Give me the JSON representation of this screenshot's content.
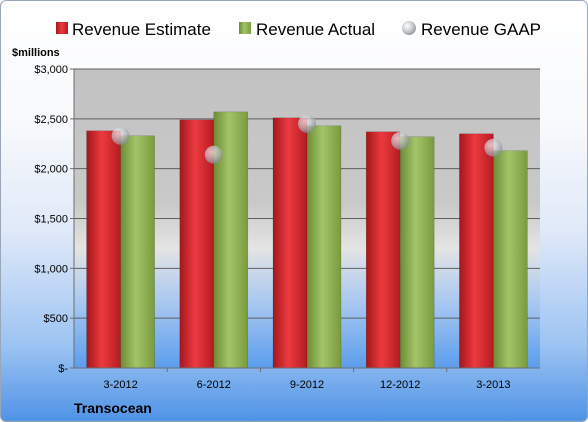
{
  "chart_data": {
    "type": "bar",
    "unit_label": "$millions",
    "company": "Transocean",
    "categories": [
      "3-2012",
      "6-2012",
      "9-2012",
      "12-2012",
      "3-2013"
    ],
    "series": [
      {
        "name": "Revenue Estimate",
        "kind": "bar",
        "color": "#d8232a",
        "values": [
          2380,
          2490,
          2510,
          2370,
          2350
        ]
      },
      {
        "name": "Revenue Actual",
        "kind": "bar",
        "color": "#8db04f",
        "values": [
          2330,
          2570,
          2430,
          2320,
          2180
        ]
      },
      {
        "name": "Revenue GAAP",
        "kind": "marker",
        "color": "#c8ccd2",
        "values": [
          2330,
          2140,
          2450,
          2280,
          2210
        ]
      }
    ],
    "ylim": [
      0,
      3000
    ],
    "yticks": [
      0,
      500,
      1000,
      1500,
      2000,
      2500,
      3000
    ],
    "ytick_labels": [
      "$-",
      "$500",
      "$1,000",
      "$1,500",
      "$2,000",
      "$2,500",
      "$3,000"
    ],
    "grid": true,
    "legend_position": "top"
  }
}
